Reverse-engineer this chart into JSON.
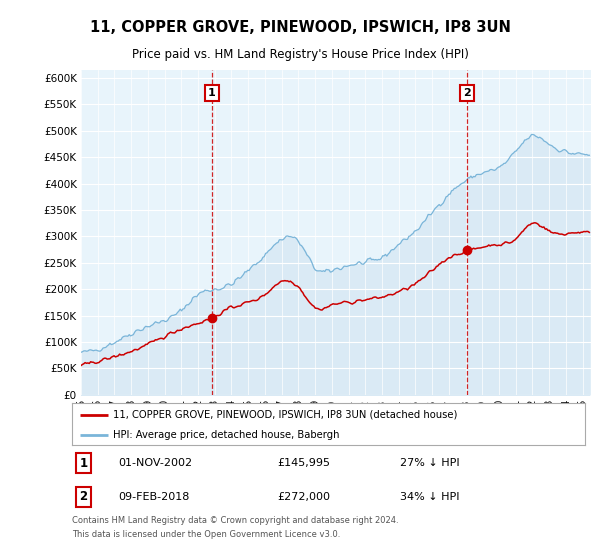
{
  "title": "11, COPPER GROVE, PINEWOOD, IPSWICH, IP8 3UN",
  "subtitle": "Price paid vs. HM Land Registry's House Price Index (HPI)",
  "ylim": [
    0,
    600000
  ],
  "xlim_start": 1995.0,
  "xlim_end": 2025.5,
  "hpi_color": "#7ab5d9",
  "hpi_fill_color": "#daeaf5",
  "price_color": "#cc0000",
  "marker1_date": "01-NOV-2002",
  "marker1_price": 145995,
  "marker1_x": 2002.83,
  "marker2_date": "09-FEB-2018",
  "marker2_price": 272000,
  "marker2_x": 2018.1,
  "legend_label_red": "11, COPPER GROVE, PINEWOOD, IPSWICH, IP8 3UN (detached house)",
  "legend_label_blue": "HPI: Average price, detached house, Babergh",
  "footer1": "Contains HM Land Registry data © Crown copyright and database right 2024.",
  "footer2": "This data is licensed under the Open Government Licence v3.0.",
  "background_color": "#ffffff",
  "plot_bg_color": "#e8f4fb"
}
